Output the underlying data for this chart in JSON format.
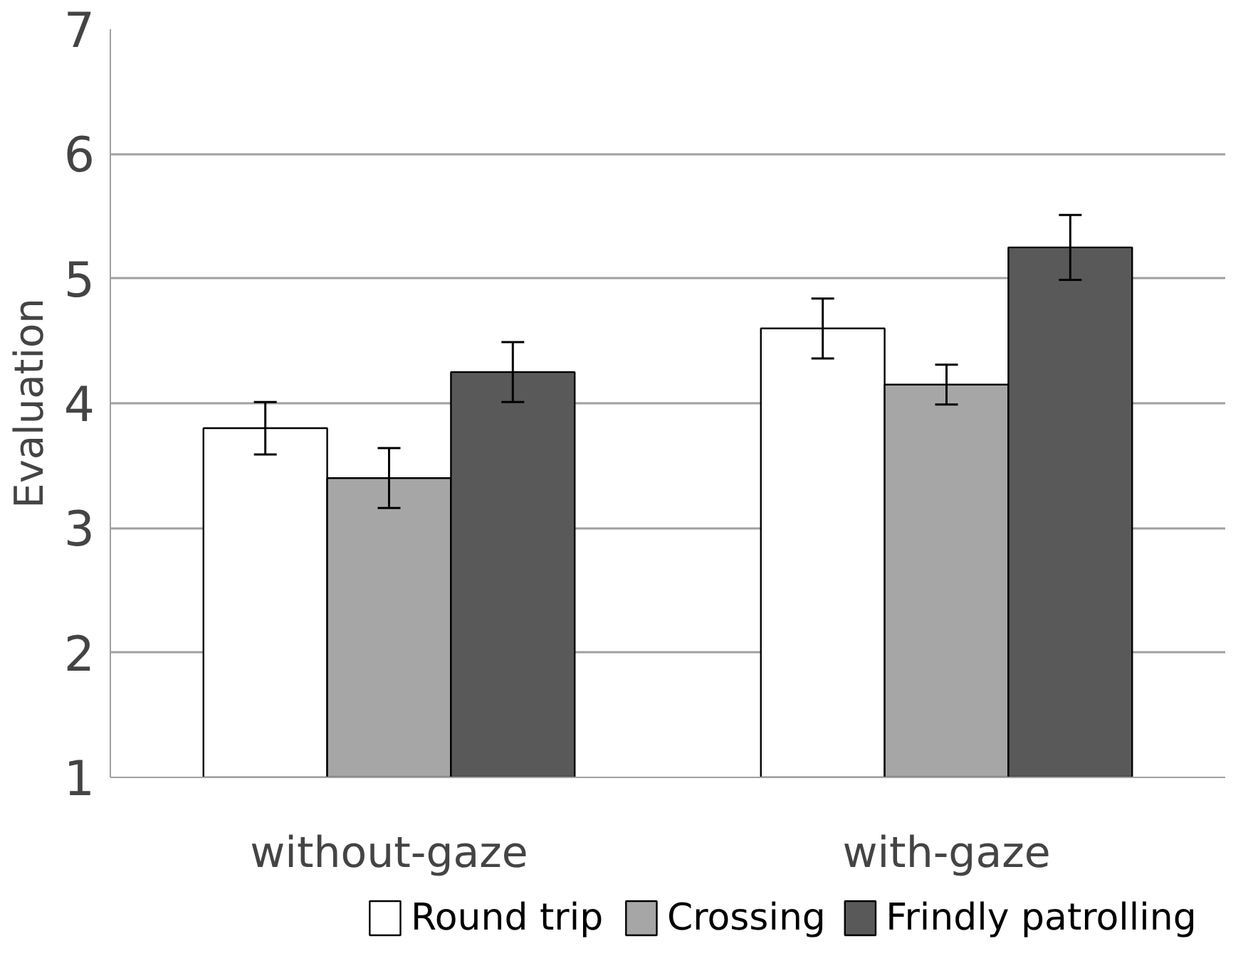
{
  "chart_data": {
    "type": "bar",
    "ylabel": "Evaluation",
    "categories": [
      "without-gaze",
      "with-gaze"
    ],
    "series": [
      {
        "name": "Round trip",
        "color": "#ffffff",
        "values": [
          3.8,
          4.6
        ],
        "errors": [
          0.21,
          0.24
        ]
      },
      {
        "name": "Crossing",
        "color": "#a6a6a6",
        "values": [
          3.4,
          4.15
        ],
        "errors": [
          0.24,
          0.16
        ]
      },
      {
        "name": "Frindly patrolling",
        "color": "#595959",
        "values": [
          4.25,
          5.25
        ],
        "errors": [
          0.24,
          0.26
        ]
      }
    ],
    "ylim": [
      1,
      7
    ],
    "yticks": [
      1,
      2,
      3,
      4,
      5,
      6,
      7
    ],
    "grid": "y",
    "legend": "bottom"
  }
}
